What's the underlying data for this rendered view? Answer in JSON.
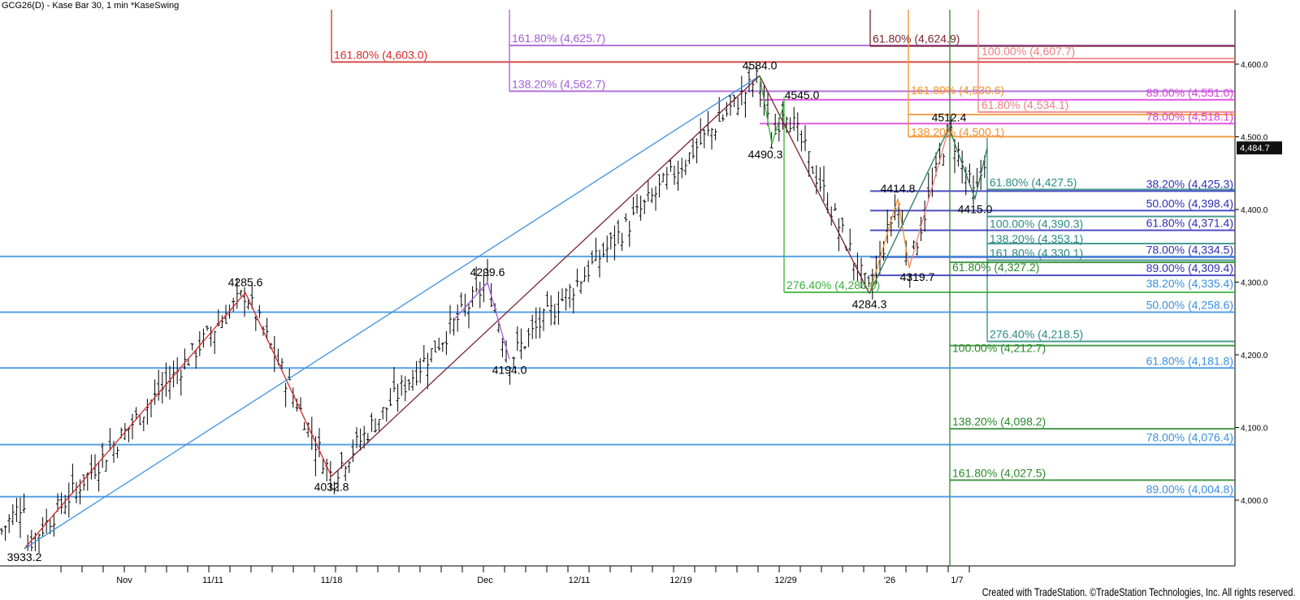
{
  "title": "GCG26(D) - Kase Bar 30, 1 min  *KaseSwing",
  "credit": "Created with TradeStation. ©TradeStation Technologies, Inc. All rights reserved.",
  "chart_data": {
    "type": "ohlc-bar",
    "symbol": "GCG26(D)",
    "ylim": [
      3900,
      4650
    ],
    "y_ticks": [
      "4,600.0",
      "4,500.0",
      "4,400.0",
      "4,300.0",
      "4,200.0",
      "4,100.0",
      "4,000.0"
    ],
    "y_tick_values": [
      4600,
      4500,
      4400,
      4300,
      4200,
      4100,
      4000
    ],
    "x_ticks": [
      "Nov",
      "11/11",
      "11/18",
      "Dec",
      "12/11",
      "12/19",
      "12/29",
      "'26",
      "1/7"
    ],
    "last_price": {
      "value": 4484.7,
      "label": "4,484.7"
    },
    "swings": [
      {
        "label": "3933.2",
        "value": 3933.2
      },
      {
        "label": "4285.6",
        "value": 4285.6
      },
      {
        "label": "4032.8",
        "value": 4032.8
      },
      {
        "label": "4299.6",
        "value": 4299.6
      },
      {
        "label": "4194.0",
        "value": 4194.0
      },
      {
        "label": "4584.0",
        "value": 4584.0
      },
      {
        "label": "4490.3",
        "value": 4490.3
      },
      {
        "label": "4545.0",
        "value": 4545.0
      },
      {
        "label": "4284.3",
        "value": 4284.3
      },
      {
        "label": "4414.8",
        "value": 4414.8
      },
      {
        "label": "4319.7",
        "value": 4319.7
      },
      {
        "label": "4512.4",
        "value": 4512.4
      },
      {
        "label": "4415.0",
        "value": 4415.0
      }
    ],
    "fib_groups": [
      {
        "color": "#d42a2a",
        "levels": [
          {
            "label": "161.80% (4,603.0)",
            "value": 4603.0
          }
        ]
      },
      {
        "color": "#a45bd4",
        "levels": [
          {
            "label": "161.80% (4,625.7)",
            "value": 4625.7
          },
          {
            "label": "138.20% (4,562.7)",
            "value": 4562.7
          }
        ]
      },
      {
        "color": "#7a2430",
        "levels": [
          {
            "label": "61.80% (4,624.9)",
            "value": 4624.9
          }
        ]
      },
      {
        "color": "#ee7f7f",
        "levels": [
          {
            "label": "100.00% (4,607.7)",
            "value": 4607.7
          },
          {
            "label": "61.80% (4,534.1)",
            "value": 4534.1
          }
        ]
      },
      {
        "color": "#e03ee0",
        "levels": [
          {
            "label": "89.00% (4,551.0)",
            "value": 4551.0
          },
          {
            "label": "78.00% (4,518.1)",
            "value": 4518.1
          }
        ]
      },
      {
        "color": "#f0902a",
        "levels": [
          {
            "label": "161.80% (4,530.6)",
            "value": 4530.6
          },
          {
            "label": "138.20% (4,500.1)",
            "value": 4500.1
          }
        ]
      },
      {
        "color": "#2a8a82",
        "levels": [
          {
            "label": "61.80% (4,427.5)",
            "value": 4427.5
          },
          {
            "label": "100.00% (4,390.3)",
            "value": 4390.3
          },
          {
            "label": "138.20% (4,353.1)",
            "value": 4353.1
          },
          {
            "label": "161.80% (4,330.1)",
            "value": 4330.1
          },
          {
            "label": "276.40% (4,218.5)",
            "value": 4218.5
          }
        ]
      },
      {
        "color": "#2e2eb8",
        "levels": [
          {
            "label": "38.20% (4,425.3)",
            "value": 4425.3
          },
          {
            "label": "50.00% (4,398.4)",
            "value": 4398.4
          },
          {
            "label": "61.80% (4,371.4)",
            "value": 4371.4
          },
          {
            "label": "78.00% (4,334.5)",
            "value": 4334.5
          },
          {
            "label": "89.00% (4,309.4)",
            "value": 4309.4
          }
        ]
      },
      {
        "color": "#3ab03a",
        "levels": [
          {
            "label": "276.40% (4,286.0)",
            "value": 4286.0
          }
        ]
      },
      {
        "color": "#2a882a",
        "levels": [
          {
            "label": "61.80% (4,327.2)",
            "value": 4327.2
          },
          {
            "label": "100.00% (4,212.7)",
            "value": 4212.7
          },
          {
            "label": "138.20% (4,098.2)",
            "value": 4098.2
          },
          {
            "label": "161.80% (4,027.5)",
            "value": 4027.5
          }
        ]
      },
      {
        "color": "#3a90e0",
        "levels": [
          {
            "label": "38.20% (4,335.4)",
            "value": 4335.4
          },
          {
            "label": "50.00% (4,258.6)",
            "value": 4258.6
          },
          {
            "label": "61.80% (4,181.8)",
            "value": 4181.8
          },
          {
            "label": "78.00% (4,076.4)",
            "value": 4076.4
          },
          {
            "label": "89.00% (4,004.8)",
            "value": 4004.8
          }
        ]
      }
    ]
  }
}
